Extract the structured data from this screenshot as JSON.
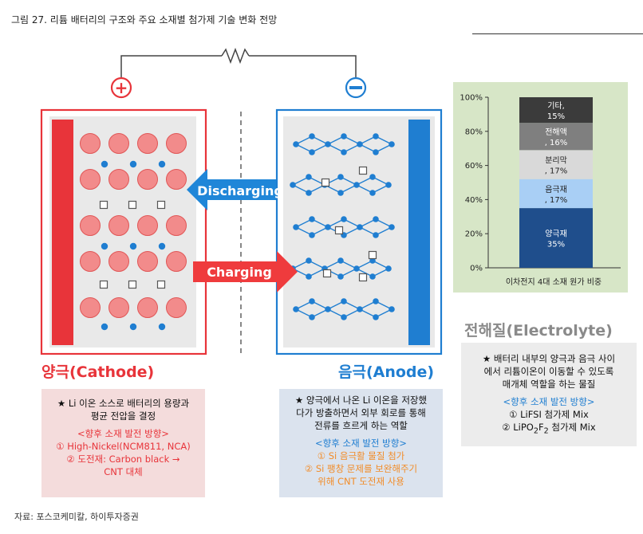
{
  "figure_title": "그림 27. 리튬 배터리의 구조와 주요 소재별 첨가제 기술 변화 전망",
  "source": "자료: 포스코케미칼, 하이투자증권",
  "diagram": {
    "plus_symbol": "+",
    "minus_symbol": "−",
    "discharging_label": "Discharging",
    "charging_label": "Charging",
    "cathode_label": "양극(Cathode)",
    "anode_label": "음극(Anode)",
    "electrolyte_label": "전해질(Electrolyte)",
    "colors": {
      "cathode": "#e8343a",
      "anode": "#1f7ed1",
      "discharge_arrow": "#1f86d8",
      "charge_arrow": "#ef3b3d"
    }
  },
  "cathode_box": {
    "desc_line1": "★ Li 이온 소스로 배터리의 용량과",
    "desc_line2": "평균 전압을 결정",
    "heading": "<향후 소재 발전 방향>",
    "item1": "① High-Nickel(NCM811, NCA)",
    "item2": "② 도전재: Carbon black →",
    "item3": "CNT 대체"
  },
  "anode_box": {
    "desc_line1": "★ 양극에서 나온 Li 이온을 저장했",
    "desc_line2": "다가 방출하면서 외부 회로를 통해",
    "desc_line3": "전류를 흐르게 하는 역할",
    "heading": "<향후 소재 발전 방향>",
    "item1": "① Si 음극활 물질 첨가",
    "item2": "② Si 팽창 문제를 보완해주기",
    "item3": "위해 CNT 도전재 사용"
  },
  "electrolyte_box": {
    "desc_line1": "★ 배터리 내부의 양극과 음극 사이",
    "desc_line2": "에서 리튬이온이 이동할 수 있도록",
    "desc_line3": "매개체 역할을 하는 물질",
    "heading": "<향후 소재 발전 방향>",
    "item1": "① LiFSI 첨가제 Mix",
    "item2_prefix": "② LiPO",
    "item2_sub1": "2",
    "item2_mid": "F",
    "item2_sub2": "2",
    "item2_suffix": " 첨가제 Mix"
  },
  "chart_data": {
    "type": "bar",
    "stacked": true,
    "xlabel": "이차전지 4대 소재 원가 비중",
    "ylim": [
      0,
      100
    ],
    "yticks": [
      "0%",
      "20%",
      "40%",
      "60%",
      "80%",
      "100%"
    ],
    "series": [
      {
        "name": "양극재",
        "value": 35,
        "label": "35%",
        "color": "#1f4e8c"
      },
      {
        "name": "음극재",
        "value": 17,
        "label": ", 17%",
        "color": "#a9cff5"
      },
      {
        "name": "분리막",
        "value": 17,
        "label": ", 17%",
        "color": "#d9d9d9"
      },
      {
        "name": "전해액",
        "value": 16,
        "label": ", 16%",
        "color": "#7f7f7f"
      },
      {
        "name": "기타,",
        "value": 15,
        "label": "15%",
        "color": "#3b3b3b"
      }
    ]
  }
}
